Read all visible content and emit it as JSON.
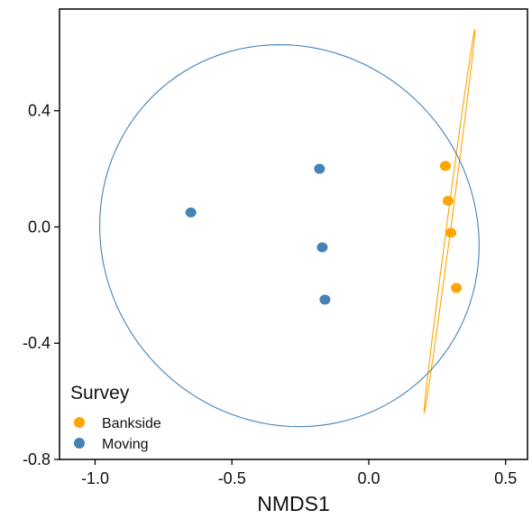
{
  "chart_data": {
    "type": "scatter",
    "title": "",
    "xlabel": "NMDS1",
    "ylabel": "",
    "xlim": [
      -1.13,
      0.58
    ],
    "ylim": [
      -0.8,
      0.75
    ],
    "x_ticks": [
      -1.0,
      -0.5,
      0.0,
      0.5
    ],
    "x_tick_labels": [
      "-1.0",
      "-0.5",
      "0.0",
      "0.5"
    ],
    "y_ticks": [
      -0.8,
      -0.4,
      0.0,
      0.4
    ],
    "y_tick_labels": [
      "-0.8",
      "-0.4",
      "0.0",
      "0.4"
    ],
    "grid": false,
    "legend": {
      "title": "Survey",
      "placement": "bottom-left, inside plot"
    },
    "series": [
      {
        "name": "Bankside",
        "color": "#FFA500",
        "points": [
          {
            "x": 0.28,
            "y": 0.21
          },
          {
            "x": 0.29,
            "y": 0.09
          },
          {
            "x": 0.3,
            "y": -0.02
          },
          {
            "x": 0.32,
            "y": -0.21
          }
        ],
        "ellipse": {
          "center_x": 0.295,
          "center_y": 0.02,
          "semi_major": 0.665,
          "semi_minor": 0.008,
          "angle_deg": 82
        }
      },
      {
        "name": "Moving",
        "color": "#4682B4",
        "points": [
          {
            "x": -0.65,
            "y": 0.05
          },
          {
            "x": -0.18,
            "y": 0.2
          },
          {
            "x": -0.17,
            "y": -0.07
          },
          {
            "x": -0.16,
            "y": -0.25
          }
        ],
        "ellipse": {
          "center_x": -0.29,
          "center_y": -0.03,
          "semi_major": 0.7,
          "semi_minor": 0.65,
          "angle_deg": -22
        }
      }
    ]
  }
}
